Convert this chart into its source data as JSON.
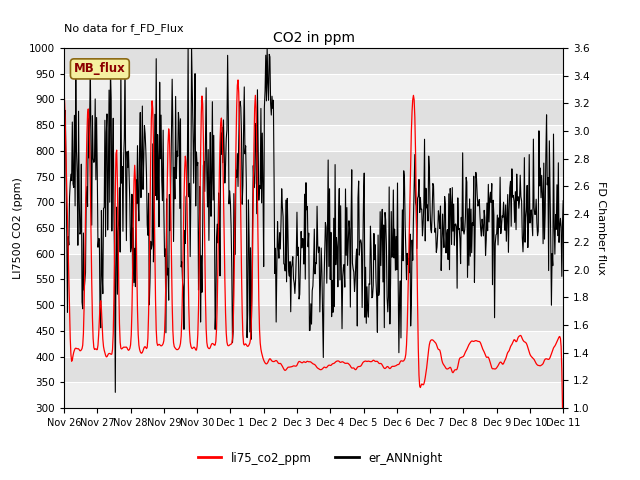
{
  "title": "CO2 in ppm",
  "no_data_text": "No data for f_FD_Flux",
  "ylabel_left": "LI7500 CO2 (ppm)",
  "ylabel_right": "FD Chamber flux",
  "ylim_left": [
    300,
    1000
  ],
  "ylim_right": [
    1.0,
    3.6
  ],
  "yticks_left": [
    300,
    350,
    400,
    450,
    500,
    550,
    600,
    650,
    700,
    750,
    800,
    850,
    900,
    950,
    1000
  ],
  "yticks_right": [
    1.0,
    1.2,
    1.4,
    1.6,
    1.8,
    2.0,
    2.2,
    2.4,
    2.6,
    2.8,
    3.0,
    3.2,
    3.4,
    3.6
  ],
  "xtick_labels": [
    "Nov 26",
    "Nov 27",
    "Nov 28",
    "Nov 29",
    "Nov 30",
    "Dec 1",
    "Dec 2",
    "Dec 3",
    "Dec 4",
    "Dec 5",
    "Dec 6",
    "Dec 7",
    "Dec 8",
    "Dec 9",
    "Dec 10",
    "Dec 11"
  ],
  "legend_entries": [
    "li75_co2_ppm",
    "er_ANNnight"
  ],
  "legend_colors": [
    "red",
    "black"
  ],
  "mb_flux_label": "MB_flux",
  "line_color_red": "#ff0000",
  "line_color_black": "#000000",
  "plot_bg_light": "#ebebeb",
  "plot_bg_dark": "#d8d8d8",
  "grid_color": "#ffffff"
}
